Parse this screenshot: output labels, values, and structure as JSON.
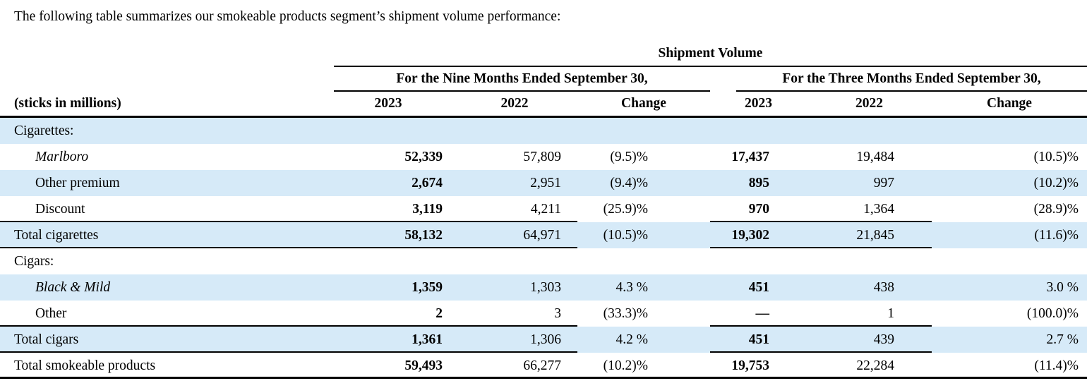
{
  "intro": "The following table summarizes our smokeable products segment’s shipment volume performance:",
  "table": {
    "title": "Shipment Volume",
    "group_headers": {
      "nine": "For the Nine Months Ended September 30,",
      "three": "For the Three Months Ended September 30,"
    },
    "stub_header": "(sticks in millions)",
    "col_headers": [
      "2023",
      "2022",
      "Change",
      "2023",
      "2022",
      "Change"
    ],
    "rows": [
      {
        "label": "Cigarettes:",
        "values": [
          "",
          "",
          "",
          "",
          "",
          ""
        ]
      },
      {
        "label": "Marlboro",
        "values": [
          "52,339",
          "57,809",
          "(9.5)%",
          "17,437",
          "19,484",
          "(10.5)%"
        ]
      },
      {
        "label": "Other premium",
        "values": [
          "2,674",
          "2,951",
          "(9.4)%",
          "895",
          "997",
          "(10.2)%"
        ]
      },
      {
        "label": "Discount",
        "values": [
          "3,119",
          "4,211",
          "(25.9)%",
          "970",
          "1,364",
          "(28.9)%"
        ]
      },
      {
        "label": "Total cigarettes",
        "values": [
          "58,132",
          "64,971",
          "(10.5)%",
          "19,302",
          "21,845",
          "(11.6)%"
        ]
      },
      {
        "label": "Cigars:",
        "values": [
          "",
          "",
          "",
          "",
          "",
          ""
        ]
      },
      {
        "label": "Black & Mild",
        "values": [
          "1,359",
          "1,303",
          "4.3 %",
          "451",
          "438",
          "3.0 %"
        ]
      },
      {
        "label": "Other",
        "values": [
          "2",
          "3",
          "(33.3)%",
          "—",
          "1",
          "(100.0)%"
        ]
      },
      {
        "label": "Total cigars",
        "values": [
          "1,361",
          "1,306",
          "4.2 %",
          "451",
          "439",
          "2.7 %"
        ]
      },
      {
        "label": "Total smokeable products",
        "values": [
          "59,493",
          "66,277",
          "(10.2)%",
          "19,753",
          "22,284",
          "(11.4)%"
        ]
      }
    ]
  },
  "colors": {
    "stripe_blue": "#d6eaf8",
    "rule_black": "#000000"
  }
}
